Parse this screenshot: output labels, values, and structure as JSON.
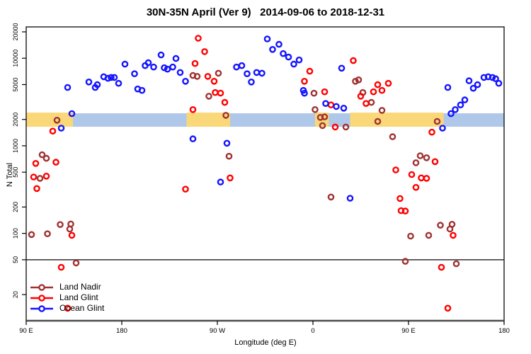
{
  "title": "30N-35N April (Ver 9)   2014-09-06 to 2018-12-31",
  "legend": {
    "items": [
      {
        "label": "Land Nadir",
        "color": "#A03232"
      },
      {
        "label": "Land Glint",
        "color": "#FF0000"
      },
      {
        "label": "Ocean Glint",
        "color": "#1414FF"
      }
    ]
  },
  "colors": {
    "land_nadir": "#A03232",
    "land_glint": "#FF0000",
    "ocean_glint": "#1414FF",
    "band_blue": "#AFC7E8",
    "band_yellow": "#FAD87A",
    "axis_gray": "#4D4D4D",
    "box_black": "#1A1A1A"
  },
  "chart_data": {
    "type": "scatter",
    "title": "30N-35N April (Ver 9)   2014-09-06 to 2018-12-31",
    "xlabel": "Longitude (deg E)",
    "ylabel": "N Total",
    "y_axis": {
      "scale": "log",
      "ticks": [
        {
          "label": "20000",
          "value": 20000
        },
        {
          "label": "10000",
          "value": 10000
        },
        {
          "label": "5000",
          "value": 5000
        },
        {
          "label": "2000",
          "value": 2000
        },
        {
          "label": "1000",
          "value": 1000
        },
        {
          "label": "500",
          "value": 500
        },
        {
          "label": "200",
          "value": 200
        },
        {
          "label": "100",
          "value": 100
        },
        {
          "label": "50",
          "value": 50
        },
        {
          "label": "20",
          "value": 20
        }
      ],
      "range_approx": [
        10,
        22800
      ]
    },
    "x_axis": {
      "span_deg": 450,
      "note": "axis wraps: 0deg-position = 90E, then 180, 90W, 0, 90E, 180",
      "ticks": [
        {
          "label": "90 E",
          "deg": 0
        },
        {
          "label": "180",
          "deg": 90
        },
        {
          "label": "90 W",
          "deg": 180
        },
        {
          "label": "0",
          "deg": 270
        },
        {
          "label": "90 E",
          "deg": 360
        },
        {
          "label": "180",
          "deg": 450
        }
      ]
    },
    "ref_line": {
      "value": 50,
      "color": "#4D4D4D"
    },
    "bands": {
      "ocean_band": {
        "deg_start": 0,
        "deg_end": 450,
        "value_top": 2350,
        "value_bottom": 1650,
        "color": "#AFC7E8"
      },
      "land_segments": [
        {
          "deg_start": 0,
          "deg_end": 44
        },
        {
          "deg_start": 151,
          "deg_end": 192
        },
        {
          "deg_start": 272,
          "deg_end": 285
        },
        {
          "deg_start": 305,
          "deg_end": 393
        }
      ],
      "land_band_color": "#FAD87A"
    },
    "series": [
      {
        "name": "Land Nadir",
        "color": "#A03232",
        "points": [
          [
            29,
            1960
          ],
          [
            15,
            790
          ],
          [
            19,
            720
          ],
          [
            13,
            425
          ],
          [
            5,
            97
          ],
          [
            20,
            99
          ],
          [
            32,
            126
          ],
          [
            42,
            128
          ],
          [
            41,
            112
          ],
          [
            47,
            46
          ],
          [
            157,
            6350
          ],
          [
            161,
            6200
          ],
          [
            181,
            6740
          ],
          [
            172,
            3680
          ],
          [
            188,
            2230
          ],
          [
            191,
            760
          ],
          [
            271,
            3980
          ],
          [
            272,
            2590
          ],
          [
            277,
            2110
          ],
          [
            281,
            2140
          ],
          [
            279,
            1700
          ],
          [
            301,
            1640
          ],
          [
            287,
            260
          ],
          [
            310,
            5450
          ],
          [
            313,
            5660
          ],
          [
            317,
            4060
          ],
          [
            325,
            3130
          ],
          [
            335,
            2540
          ],
          [
            331,
            1900
          ],
          [
            387,
            1900
          ],
          [
            345,
            1270
          ],
          [
            371,
            770
          ],
          [
            377,
            730
          ],
          [
            367,
            640
          ],
          [
            390,
            124
          ],
          [
            401,
            127
          ],
          [
            399,
            112
          ],
          [
            362,
            93
          ],
          [
            379,
            95
          ],
          [
            357,
            48
          ],
          [
            405,
            45
          ]
        ]
      },
      {
        "name": "Land Glint",
        "color": "#FF0000",
        "points": [
          [
            25,
            1470
          ],
          [
            9,
            630
          ],
          [
            28,
            650
          ],
          [
            7,
            440
          ],
          [
            19,
            450
          ],
          [
            10,
            325
          ],
          [
            43,
            95
          ],
          [
            33,
            41
          ],
          [
            39,
            14
          ],
          [
            162,
            16900
          ],
          [
            168,
            11900
          ],
          [
            159,
            8700
          ],
          [
            171,
            6200
          ],
          [
            177,
            5450
          ],
          [
            178,
            4060
          ],
          [
            183,
            4000
          ],
          [
            187,
            3130
          ],
          [
            157,
            2590
          ],
          [
            150,
            320
          ],
          [
            192,
            430
          ],
          [
            267,
            7100
          ],
          [
            262,
            5450
          ],
          [
            281,
            4130
          ],
          [
            287,
            2930
          ],
          [
            291,
            1640
          ],
          [
            308,
            9400
          ],
          [
            331,
            4990
          ],
          [
            341,
            5170
          ],
          [
            335,
            4290
          ],
          [
            327,
            4130
          ],
          [
            315,
            3680
          ],
          [
            320,
            3040
          ],
          [
            385,
            660
          ],
          [
            348,
            530
          ],
          [
            382,
            1430
          ],
          [
            363,
            470
          ],
          [
            372,
            430
          ],
          [
            377,
            425
          ],
          [
            367,
            335
          ],
          [
            352,
            250
          ],
          [
            353,
            182
          ],
          [
            357,
            180
          ],
          [
            402,
            95
          ],
          [
            391,
            41
          ],
          [
            397,
            14
          ]
        ]
      },
      {
        "name": "Ocean Glint",
        "color": "#1414FF",
        "points": [
          [
            39,
            4640
          ],
          [
            59,
            5350
          ],
          [
            65,
            4640
          ],
          [
            67,
            4990
          ],
          [
            73,
            6150
          ],
          [
            77,
            5900
          ],
          [
            80,
            6030
          ],
          [
            83,
            6030
          ],
          [
            87,
            5170
          ],
          [
            93,
            8560
          ],
          [
            102,
            6650
          ],
          [
            105,
            4450
          ],
          [
            109,
            4290
          ],
          [
            112,
            8230
          ],
          [
            115,
            8880
          ],
          [
            120,
            7930
          ],
          [
            127,
            10900
          ],
          [
            130,
            7790
          ],
          [
            133,
            7500
          ],
          [
            138,
            7930
          ],
          [
            141,
            9930
          ],
          [
            145,
            6870
          ],
          [
            150,
            5450
          ],
          [
            33,
            1590
          ],
          [
            43,
            2330
          ],
          [
            157,
            1200
          ],
          [
            189,
            1070
          ],
          [
            198,
            7930
          ],
          [
            203,
            8230
          ],
          [
            208,
            6650
          ],
          [
            212,
            5350
          ],
          [
            217,
            6870
          ],
          [
            222,
            6740
          ],
          [
            227,
            16600
          ],
          [
            232,
            12600
          ],
          [
            238,
            14400
          ],
          [
            242,
            11300
          ],
          [
            247,
            10300
          ],
          [
            252,
            8560
          ],
          [
            257,
            9560
          ],
          [
            261,
            4290
          ],
          [
            262,
            3980
          ],
          [
            282,
            3040
          ],
          [
            292,
            2810
          ],
          [
            299,
            2690
          ],
          [
            297,
            7700
          ],
          [
            183,
            386
          ],
          [
            305,
            252
          ],
          [
            397,
            4640
          ],
          [
            417,
            5530
          ],
          [
            421,
            4540
          ],
          [
            425,
            4990
          ],
          [
            431,
            6030
          ],
          [
            435,
            6150
          ],
          [
            439,
            6030
          ],
          [
            442,
            5830
          ],
          [
            445,
            5170
          ],
          [
            413,
            3340
          ],
          [
            409,
            2930
          ],
          [
            404,
            2590
          ],
          [
            400,
            2330
          ],
          [
            392,
            1590
          ]
        ]
      }
    ],
    "legend_position": "bottom-left"
  }
}
